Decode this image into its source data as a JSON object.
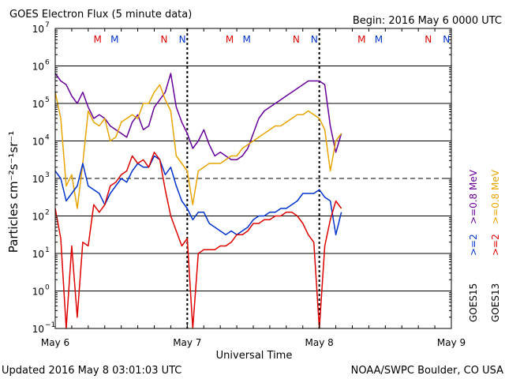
{
  "header": {
    "title": "GOES Electron Flux (5 minute data)",
    "begin": "Begin: 2016 May 6 0000 UTC"
  },
  "footer": {
    "updated": "Updated 2016 May  8 03:01:03 UTC",
    "credit": "NOAA/SWPC Boulder, CO USA"
  },
  "colors": {
    "purple": "#660099",
    "orange": "#e8a400",
    "blue": "#0033cc",
    "red": "#dd0000",
    "mark_red": "#dd0000",
    "mark_blue": "#0033cc"
  },
  "chart_data": {
    "type": "line",
    "title": "GOES Electron Flux (5 minute data)",
    "xlabel": "Universal Time",
    "ylabel": "Particles cm⁻²s⁻¹sr⁻¹",
    "yscale": "log",
    "xlim": [
      0,
      72
    ],
    "x_unit": "hours since 2016 May 6 0000 UTC",
    "ylim_exp": [
      -1,
      7
    ],
    "ytick_base": "10",
    "yticks": [
      -1,
      0,
      1,
      2,
      3,
      4,
      5,
      6,
      7
    ],
    "threshold_exp": 3,
    "xticks": [
      {
        "x": 0,
        "label": "May 6"
      },
      {
        "x": 24,
        "label": "May 7"
      },
      {
        "x": 48,
        "label": "May 8"
      },
      {
        "x": 72,
        "label": "May 9"
      }
    ],
    "day_boundaries": [
      24,
      48
    ],
    "markers": [
      {
        "x": 7.7,
        "label": "M",
        "color": "#dd0000"
      },
      {
        "x": 10.8,
        "label": "M",
        "color": "#0033cc"
      },
      {
        "x": 19.8,
        "label": "N",
        "color": "#dd0000"
      },
      {
        "x": 23.1,
        "label": "N",
        "color": "#0033cc"
      },
      {
        "x": 31.7,
        "label": "M",
        "color": "#dd0000"
      },
      {
        "x": 34.8,
        "label": "M",
        "color": "#0033cc"
      },
      {
        "x": 43.8,
        "label": "N",
        "color": "#dd0000"
      },
      {
        "x": 47.1,
        "label": "N",
        "color": "#0033cc"
      },
      {
        "x": 55.7,
        "label": "M",
        "color": "#dd0000"
      },
      {
        "x": 58.8,
        "label": "M",
        "color": "#0033cc"
      },
      {
        "x": 67.8,
        "label": "N",
        "color": "#dd0000"
      },
      {
        "x": 71.1,
        "label": "N",
        "color": "#0033cc"
      }
    ],
    "legend": {
      "placement": "right",
      "groups": [
        {
          "sat": "GOES15",
          "items": [
            {
              "label": ">=2",
              "color": "#0033cc"
            },
            {
              "label": ">=0.8 MeV",
              "color": "#660099"
            }
          ]
        },
        {
          "sat": "GOES13",
          "items": [
            {
              "label": ">=2",
              "color": "#dd0000"
            },
            {
              "label": ">=0.8 MeV",
              "color": "#e8a400"
            }
          ]
        }
      ]
    },
    "series": [
      {
        "name": "GOES15 >=0.8 MeV",
        "color": "#660099",
        "x": [
          0,
          1,
          2,
          3,
          4,
          5,
          6,
          7,
          8,
          9,
          10,
          11,
          12,
          13,
          14,
          15,
          16,
          17,
          18,
          19,
          20,
          21,
          22,
          23,
          24,
          25,
          26,
          27,
          28,
          29,
          30,
          31,
          32,
          33,
          34,
          35,
          36,
          37,
          38,
          39,
          40,
          41,
          42,
          43,
          44,
          45,
          46,
          47,
          48,
          49,
          50,
          51,
          52
        ],
        "y": [
          5.8,
          5.6,
          5.5,
          5.2,
          5.0,
          5.3,
          4.9,
          4.6,
          4.7,
          4.6,
          4.4,
          4.3,
          4.2,
          4.1,
          4.5,
          4.7,
          4.3,
          4.4,
          4.9,
          5.1,
          5.3,
          5.8,
          4.9,
          4.5,
          4.2,
          3.8,
          4.0,
          4.3,
          3.9,
          3.6,
          3.7,
          3.6,
          3.5,
          3.5,
          3.6,
          3.8,
          4.2,
          4.6,
          4.8,
          4.9,
          5.0,
          5.1,
          5.2,
          5.3,
          5.4,
          5.5,
          5.6,
          5.6,
          5.6,
          5.5,
          4.4,
          3.7,
          4.2
        ]
      },
      {
        "name": "GOES13 >=0.8 MeV",
        "color": "#e8a400",
        "x": [
          0,
          1,
          2,
          3,
          4,
          5,
          6,
          7,
          8,
          9,
          10,
          11,
          12,
          13,
          14,
          15,
          16,
          17,
          18,
          19,
          20,
          21,
          22,
          23,
          24,
          25,
          26,
          27,
          28,
          29,
          30,
          31,
          32,
          33,
          34,
          35,
          36,
          37,
          38,
          39,
          40,
          41,
          42,
          43,
          44,
          45,
          46,
          47,
          48,
          49,
          50,
          51,
          52
        ],
        "y": [
          5.3,
          4.6,
          2.8,
          3.1,
          2.2,
          3.4,
          4.8,
          4.5,
          4.4,
          4.6,
          4.0,
          4.1,
          4.5,
          4.6,
          4.7,
          4.6,
          5.0,
          5.0,
          5.3,
          5.5,
          5.1,
          4.8,
          3.6,
          3.4,
          3.2,
          2.3,
          3.2,
          3.3,
          3.4,
          3.4,
          3.4,
          3.5,
          3.6,
          3.6,
          3.8,
          3.9,
          4.0,
          4.1,
          4.2,
          4.3,
          4.4,
          4.4,
          4.5,
          4.6,
          4.7,
          4.7,
          4.8,
          4.7,
          4.6,
          4.3,
          3.2,
          4.0,
          4.2
        ]
      },
      {
        "name": "GOES15 >=2 MeV",
        "color": "#0033cc",
        "x": [
          0,
          1,
          2,
          3,
          4,
          5,
          6,
          7,
          8,
          9,
          10,
          11,
          12,
          13,
          14,
          15,
          16,
          17,
          18,
          19,
          20,
          21,
          22,
          23,
          24,
          25,
          26,
          27,
          28,
          29,
          30,
          31,
          32,
          33,
          34,
          35,
          36,
          37,
          38,
          39,
          40,
          41,
          42,
          43,
          44,
          45,
          46,
          47,
          48,
          49,
          50,
          51,
          52
        ],
        "y": [
          3.2,
          3.0,
          2.4,
          2.6,
          2.8,
          3.4,
          2.8,
          2.7,
          2.6,
          2.3,
          2.6,
          2.8,
          3.0,
          2.9,
          3.2,
          3.4,
          3.3,
          3.3,
          3.6,
          3.5,
          3.1,
          3.3,
          2.8,
          2.4,
          2.2,
          1.9,
          2.1,
          2.1,
          1.8,
          1.7,
          1.6,
          1.5,
          1.6,
          1.5,
          1.6,
          1.7,
          1.9,
          2.0,
          2.0,
          2.1,
          2.1,
          2.2,
          2.2,
          2.3,
          2.4,
          2.6,
          2.6,
          2.6,
          2.7,
          2.5,
          2.4,
          1.5,
          2.1
        ]
      },
      {
        "name": "GOES13 >=2 MeV",
        "color": "#dd0000",
        "x": [
          0,
          1,
          2,
          3,
          4,
          5,
          6,
          7,
          8,
          9,
          10,
          11,
          12,
          13,
          14,
          15,
          16,
          17,
          18,
          19,
          20,
          21,
          22,
          23,
          24,
          25,
          26,
          27,
          28,
          29,
          30,
          31,
          32,
          33,
          34,
          35,
          36,
          37,
          38,
          39,
          40,
          41,
          42,
          43,
          44,
          45,
          46,
          47,
          48,
          49,
          50,
          51,
          52
        ],
        "y": [
          2.2,
          1.4,
          -1.0,
          1.2,
          -0.7,
          1.3,
          1.2,
          2.3,
          2.1,
          2.3,
          2.8,
          2.9,
          3.1,
          3.2,
          3.6,
          3.4,
          3.5,
          3.3,
          3.7,
          3.5,
          2.7,
          2.0,
          1.6,
          1.2,
          1.4,
          -1.0,
          1.0,
          1.1,
          1.1,
          1.1,
          1.2,
          1.2,
          1.3,
          1.5,
          1.5,
          1.6,
          1.8,
          1.8,
          1.9,
          1.9,
          2.0,
          2.0,
          2.1,
          2.1,
          2.0,
          1.8,
          1.5,
          1.3,
          -1.0,
          1.2,
          1.9,
          2.4,
          2.2
        ]
      }
    ]
  }
}
